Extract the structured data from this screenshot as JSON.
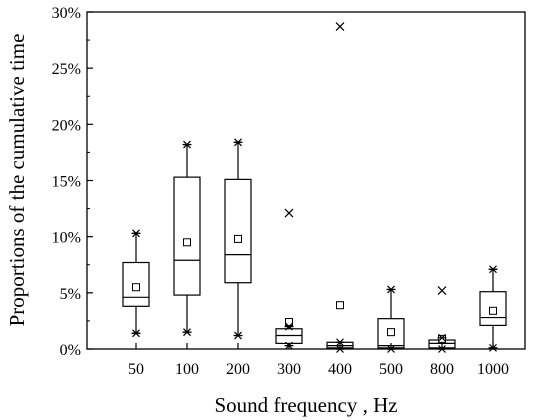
{
  "chart_data": {
    "type": "box",
    "xlabel": "Sound frequency , Hz",
    "ylabel": "Proportions of the cumulative time",
    "ylim": [
      0,
      30
    ],
    "yticks": [
      0,
      5,
      10,
      15,
      20,
      25,
      30
    ],
    "ytick_labels": [
      "0%",
      "5%",
      "10%",
      "15%",
      "20%",
      "25%",
      "30%"
    ],
    "categories": [
      "50",
      "100",
      "200",
      "300",
      "400",
      "500",
      "800",
      "1000"
    ],
    "boxes": [
      {
        "q1": 3.8,
        "median": 4.6,
        "q3": 7.7,
        "mean": 5.5,
        "whisker_low": 1.4,
        "whisker_high": 10.3,
        "outliers": []
      },
      {
        "q1": 4.8,
        "median": 7.9,
        "q3": 15.3,
        "mean": 9.5,
        "whisker_low": 1.5,
        "whisker_high": 18.2,
        "outliers": []
      },
      {
        "q1": 5.9,
        "median": 8.4,
        "q3": 15.1,
        "mean": 9.8,
        "whisker_low": 1.2,
        "whisker_high": 18.4,
        "outliers": []
      },
      {
        "q1": 0.5,
        "median": 1.2,
        "q3": 1.8,
        "mean": 2.4,
        "whisker_low": 0.3,
        "whisker_high": 2.0,
        "outliers": [
          12.1
        ]
      },
      {
        "q1": 0.1,
        "median": 0.3,
        "q3": 0.6,
        "mean": 3.9,
        "whisker_low": 0.0,
        "whisker_high": 0.6,
        "outliers": [
          28.7
        ]
      },
      {
        "q1": 0.1,
        "median": 0.3,
        "q3": 2.7,
        "mean": 1.5,
        "whisker_low": 0.0,
        "whisker_high": 5.3,
        "outliers": []
      },
      {
        "q1": 0.1,
        "median": 0.5,
        "q3": 0.8,
        "mean": 0.9,
        "whisker_low": 0.0,
        "whisker_high": 1.0,
        "outliers": [
          5.2
        ]
      },
      {
        "q1": 2.1,
        "median": 2.8,
        "q3": 5.1,
        "mean": 3.4,
        "whisker_low": 0.1,
        "whisker_high": 7.1,
        "outliers": []
      }
    ],
    "grid": false,
    "legend": "none"
  }
}
